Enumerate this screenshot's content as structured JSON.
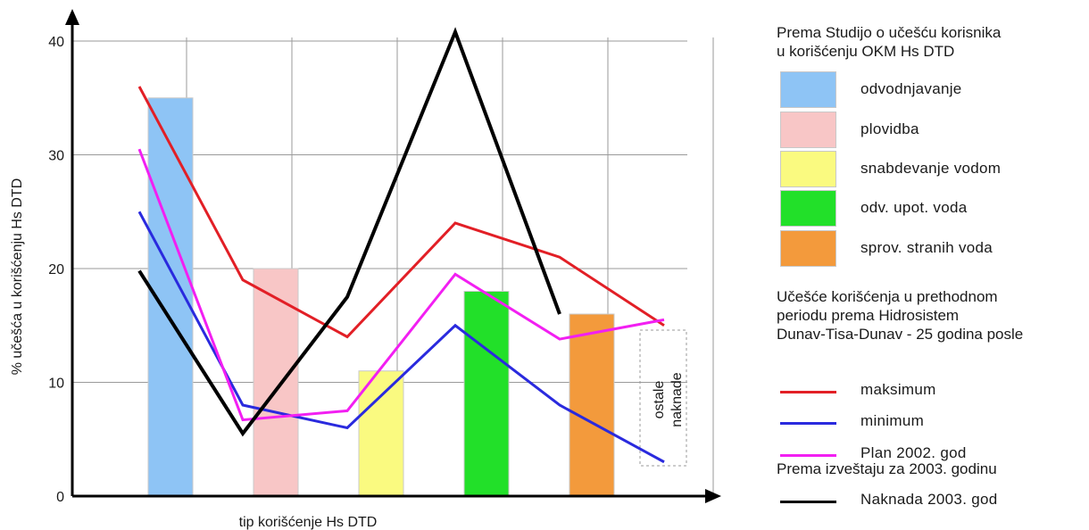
{
  "chart_data": {
    "type": "bar",
    "xlabel": "tip korišćenje Hs DTD",
    "ylabel": "% učešća u korišćenju Hs DTD",
    "ylim": [
      0,
      40
    ],
    "yticks": [
      0,
      10,
      20,
      30,
      40
    ],
    "grid": true,
    "legend_placement": "right",
    "bars": [
      {
        "category": "odvodnjavanje",
        "value": 35,
        "color": "#8ec4f5"
      },
      {
        "category": "plovidba",
        "value": 20,
        "color": "#f8c6c6"
      },
      {
        "category": "snabdevanje vodom",
        "value": 11,
        "color": "#fafa80"
      },
      {
        "category": "odv. upot. voda",
        "value": 18,
        "color": "#22e029"
      },
      {
        "category": "sprov. stranih voda",
        "value": 16,
        "color": "#f39a3c"
      }
    ],
    "series": [
      {
        "name": "maksimum",
        "color": "#e21f26",
        "x": [
          1,
          2,
          3,
          4,
          5,
          6
        ],
        "values": [
          36,
          19,
          14,
          24,
          21,
          15
        ]
      },
      {
        "name": "minimum",
        "color": "#2a2ade",
        "x": [
          1,
          2,
          3,
          4,
          5,
          6
        ],
        "values": [
          25,
          8,
          6,
          15,
          8,
          3
        ]
      },
      {
        "name": "Plan 2002. god",
        "color": "#f21ff2",
        "x": [
          1,
          2,
          3,
          4,
          5,
          6
        ],
        "values": [
          30.5,
          6.7,
          7.5,
          19.5,
          13.8,
          15.5
        ]
      },
      {
        "name": "Naknada 2003. god",
        "color": "#000000",
        "x": [
          1,
          2,
          3,
          4,
          5
        ],
        "values": [
          19.8,
          5.5,
          17.5,
          40.8,
          16
        ]
      }
    ],
    "annotation": "ostale naknade"
  },
  "legend": {
    "study_heading": [
      "Prema Studijo o učešću korisnika",
      "u korišćenju OKM Hs DTD"
    ],
    "prior_heading": [
      "Učešće korišćenja u prethodnom",
      "periodu  prema Hidrosistem",
      "Dunav-Tisa-Dunav - 25 godina posle"
    ],
    "report_heading": "Prema izveštaju za 2003. godinu"
  }
}
